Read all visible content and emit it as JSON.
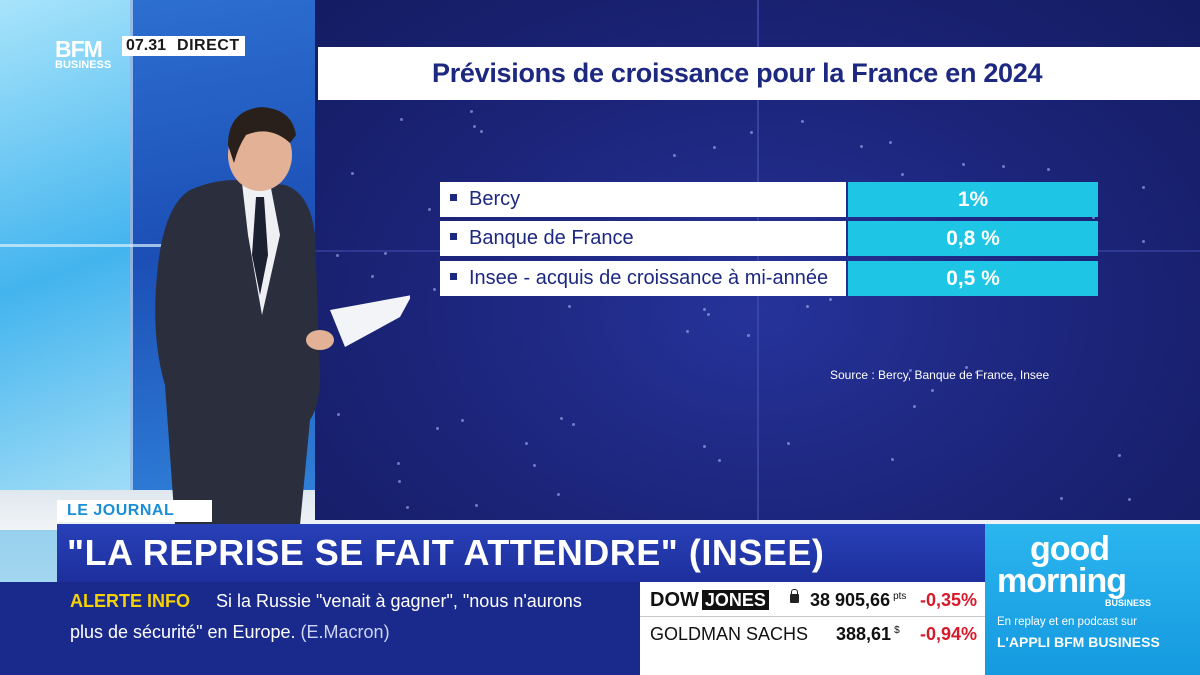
{
  "channel": {
    "logo_line1": "BFM",
    "logo_line2": "BUSINESS",
    "time": "07.31",
    "live": "DIRECT"
  },
  "screen": {
    "title": "Prévisions de croissance pour la France en 2024",
    "rows": [
      {
        "label": "Bercy",
        "value": "1%"
      },
      {
        "label": "Banque de France",
        "value": "0,8 %"
      },
      {
        "label": "Insee - acquis de croissance à mi-année",
        "value": "0,5 %"
      }
    ],
    "source": "Source : Bercy, Banque de France, Insee"
  },
  "lower_third": {
    "tag": "LE JOURNAL",
    "headline": "\"LA REPRISE SE FAIT ATTENDRE\" (INSEE)"
  },
  "ticker": {
    "alert_label": "ALERTE INFO",
    "alert_text_line1": "Si la Russie \"venait à gagner\", \"nous n'aurons",
    "alert_text_line2": "plus de sécurité\" en Europe.",
    "alert_source": "(E.Macron)"
  },
  "market": {
    "rows": [
      {
        "name_part1": "DOW",
        "name_part2": "JONES",
        "value": "38 905,66",
        "unit": "pts",
        "change": "-0,35%"
      },
      {
        "name": "GOLDMAN SACHS",
        "value": "388,61",
        "unit": "$",
        "change": "-0,94%"
      }
    ]
  },
  "promo": {
    "title_line1": "good",
    "title_line2": "morning",
    "subtitle": "BUSINESS",
    "line1": "En replay et en podcast sur",
    "line2": "L'APPLI BFM BUSINESS"
  },
  "colors": {
    "screen_bg": "#1b2478",
    "value_cell": "#1ec5e4",
    "headline_bar": "#2840b8",
    "alert_yellow": "#f5d200",
    "change_red": "#d71a2a",
    "promo_blue": "#1599df"
  }
}
